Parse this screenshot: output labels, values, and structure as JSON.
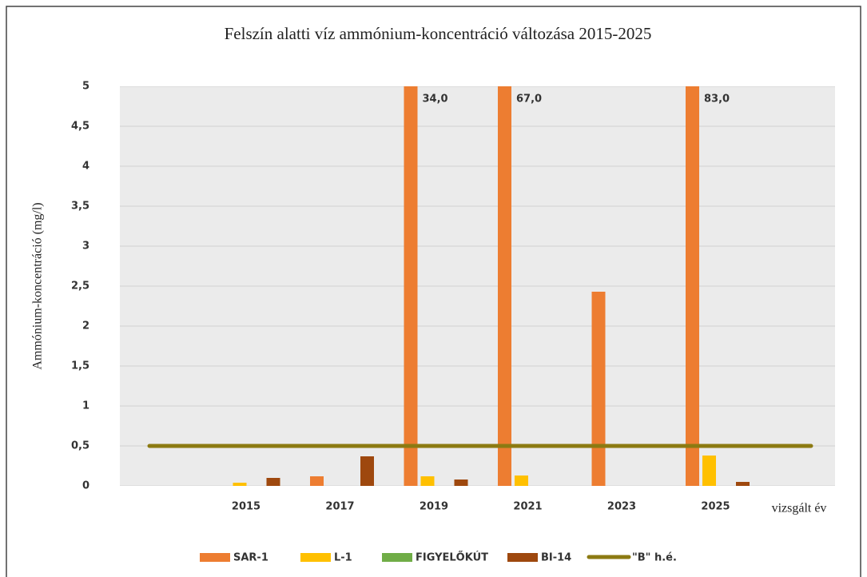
{
  "chart_data": {
    "type": "bar",
    "title": "Felszín alatti víz ammónium-koncentráció változása 2015-2025",
    "y_label": "Ammónium-koncentráció (mg/l)",
    "x_label": "vizsgált év",
    "categories": [
      "2015",
      "2017",
      "2019",
      "2021",
      "2023",
      "2025"
    ],
    "series": [
      {
        "name": "SAR-1",
        "color": "#ed7d31",
        "values": [
          null,
          0.12,
          34.0,
          67.0,
          2.43,
          83.0
        ],
        "value_labels": [
          null,
          null,
          "34,0",
          "67,0",
          null,
          "83,0"
        ]
      },
      {
        "name": "L-1",
        "color": "#ffc000",
        "values": [
          0.04,
          null,
          0.12,
          0.13,
          null,
          0.38
        ]
      },
      {
        "name": "FIGYELŐKÚT",
        "color": "#70ad47",
        "values": [
          null,
          null,
          null,
          null,
          null,
          null
        ]
      },
      {
        "name": "BI-14",
        "color": "#9e480e",
        "values": [
          0.1,
          0.37,
          0.08,
          null,
          null,
          0.05
        ]
      }
    ],
    "threshold": {
      "name": "\"B\" h.é.",
      "value": 0.5,
      "color": "#8c7a12"
    },
    "ylim": [
      0,
      5
    ],
    "yticks": [
      0,
      {
        "value": 0.5,
        "label": "0,5"
      },
      1,
      {
        "value": 1.5,
        "label": "1,5"
      },
      2,
      {
        "value": 2.5,
        "label": "2,5"
      },
      3,
      {
        "value": 3.5,
        "label": "3,5"
      },
      4,
      {
        "value": 4.5,
        "label": "4,5"
      },
      5
    ],
    "grid": true
  }
}
